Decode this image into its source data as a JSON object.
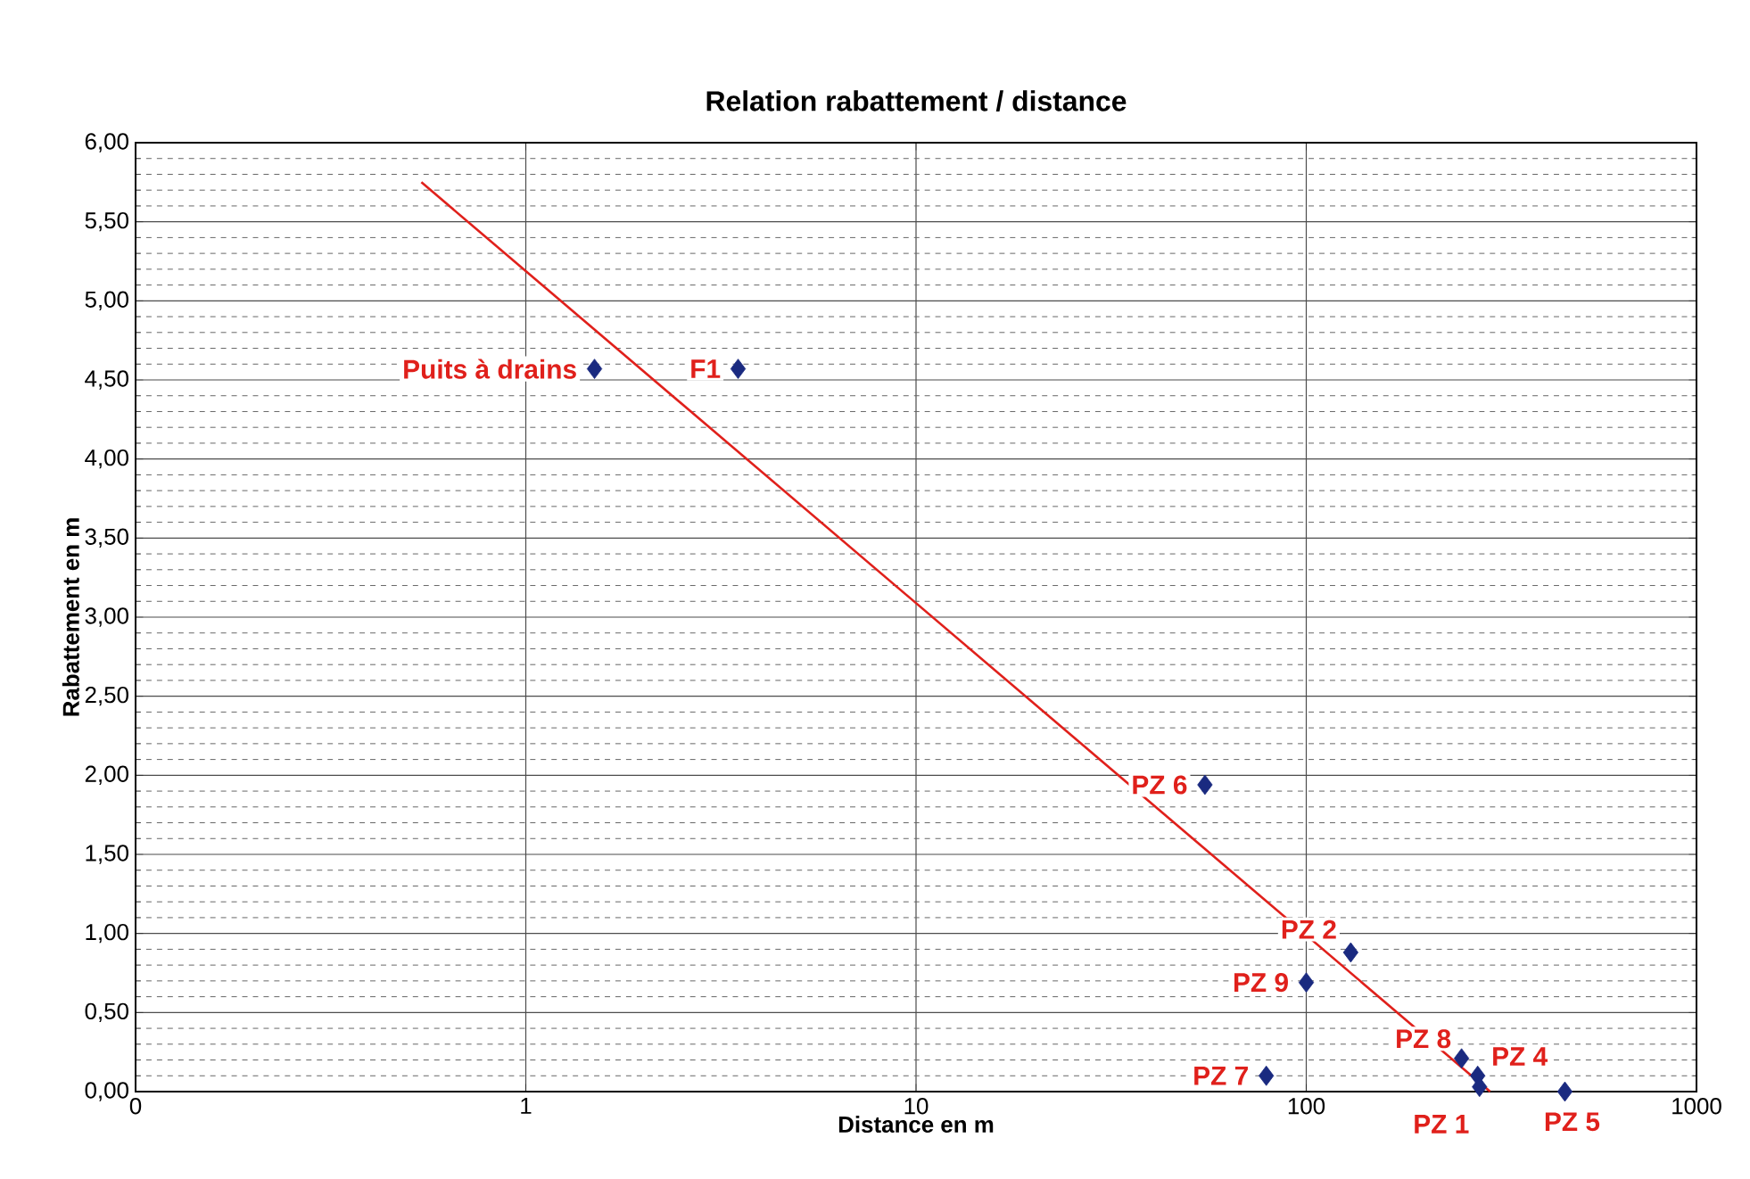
{
  "chart_data": {
    "type": "scatter",
    "title": "Relation rabattement / distance",
    "xlabel": "Distance en m",
    "ylabel": "Rabattement en m",
    "log": "x",
    "grid": true,
    "marker": "diamond",
    "xlim": [
      0.1,
      1000
    ],
    "xticks": [
      {
        "value": 0.1,
        "label": "0"
      },
      1,
      10,
      100,
      1000
    ],
    "ylim": [
      0,
      6
    ],
    "yticks": [
      {
        "value": 0,
        "label": "0,00"
      },
      {
        "value": 0.5,
        "label": "0,50"
      },
      {
        "value": 1,
        "label": "1,00"
      },
      {
        "value": 1.5,
        "label": "1,50"
      },
      {
        "value": 2,
        "label": "2,00"
      },
      {
        "value": 2.5,
        "label": "2,50"
      },
      {
        "value": 3,
        "label": "3,00"
      },
      {
        "value": 3.5,
        "label": "3,50"
      },
      {
        "value": 4,
        "label": "4,00"
      },
      {
        "value": 4.5,
        "label": "4,50"
      },
      {
        "value": 5,
        "label": "5,00"
      },
      {
        "value": 5.5,
        "label": "5,50"
      },
      {
        "value": 6,
        "label": "6,00"
      }
    ],
    "series": [
      {
        "color": "#1a2a80",
        "x": [
          1.5,
          3.5,
          55,
          130,
          100,
          79,
          250,
          275,
          278,
          460
        ],
        "values": [
          4.57,
          4.57,
          1.94,
          0.88,
          0.69,
          0.1,
          0.21,
          0.1,
          0.03,
          0
        ]
      },
      {
        "type": "line",
        "color": "#e0201b",
        "marker": "none",
        "x": [
          0.54,
          296
        ],
        "values": [
          5.75,
          0
        ]
      }
    ],
    "annotations": [
      {
        "text": "Puits à drains",
        "x": 1.5,
        "y": 4.57
      },
      {
        "text": "F1",
        "x": 3.5,
        "y": 4.57
      },
      {
        "text": "PZ 6",
        "x": 55,
        "y": 1.94
      },
      {
        "text": "PZ 2",
        "x": 130,
        "y": 0.88
      },
      {
        "text": "PZ 9",
        "x": 100,
        "y": 0.69
      },
      {
        "text": "PZ 7",
        "x": 79,
        "y": 0.1
      },
      {
        "text": "PZ 8",
        "x": 250,
        "y": 0.21
      },
      {
        "text": "PZ 4",
        "x": 275,
        "y": 0.1
      },
      {
        "text": "PZ 1",
        "x": 278,
        "y": 0.03
      },
      {
        "text": "PZ 5",
        "x": 460,
        "y": 0
      }
    ]
  }
}
